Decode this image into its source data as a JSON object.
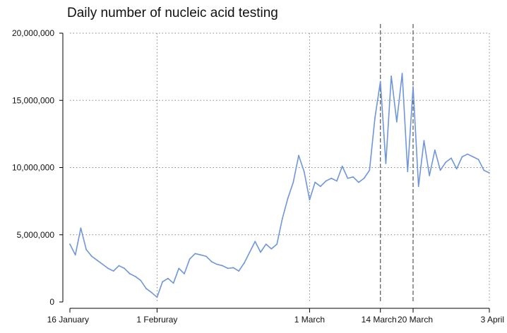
{
  "chart_data": {
    "type": "line",
    "title": "Daily number of nucleic acid testing",
    "xlabel": "",
    "ylabel": "",
    "ylim": [
      0,
      20000000
    ],
    "yticks": [
      0,
      5000000,
      10000000,
      15000000,
      20000000
    ],
    "ytick_labels": [
      "0",
      "5,000,000",
      "10,000,000",
      "15,000,000",
      "20,000,000"
    ],
    "xlim": [
      "2022-01-16",
      "2022-04-03"
    ],
    "xticks": [
      {
        "date": "2022-01-16",
        "label": "16 January"
      },
      {
        "date": "2022-02-01",
        "label": "1 Februray"
      },
      {
        "date": "2022-03-01",
        "label": "1 March"
      },
      {
        "date": "2022-03-14",
        "label": "14 March"
      },
      {
        "date": "2022-03-20",
        "label": "20 March"
      },
      {
        "date": "2022-04-03",
        "label": "3 April"
      }
    ],
    "vlines": [
      "2022-03-14",
      "2022-03-20"
    ],
    "grid": true,
    "series": [
      {
        "color": "#6f96dc",
        "points": [
          [
            "2022-01-16",
            4300000
          ],
          [
            "2022-01-17",
            3500000
          ],
          [
            "2022-01-18",
            5500000
          ],
          [
            "2022-01-19",
            3900000
          ],
          [
            "2022-01-20",
            3400000
          ],
          [
            "2022-01-21",
            3100000
          ],
          [
            "2022-01-22",
            2800000
          ],
          [
            "2022-01-23",
            2500000
          ],
          [
            "2022-01-24",
            2300000
          ],
          [
            "2022-01-25",
            2700000
          ],
          [
            "2022-01-26",
            2500000
          ],
          [
            "2022-01-27",
            2100000
          ],
          [
            "2022-01-28",
            1900000
          ],
          [
            "2022-01-29",
            1600000
          ],
          [
            "2022-01-30",
            1000000
          ],
          [
            "2022-01-31",
            700000
          ],
          [
            "2022-02-01",
            350000
          ],
          [
            "2022-02-02",
            1500000
          ],
          [
            "2022-02-03",
            1750000
          ],
          [
            "2022-02-04",
            1400000
          ],
          [
            "2022-02-05",
            2500000
          ],
          [
            "2022-02-06",
            2100000
          ],
          [
            "2022-02-07",
            3200000
          ],
          [
            "2022-02-08",
            3600000
          ],
          [
            "2022-02-09",
            3500000
          ],
          [
            "2022-02-10",
            3400000
          ],
          [
            "2022-02-11",
            3000000
          ],
          [
            "2022-02-12",
            2800000
          ],
          [
            "2022-02-13",
            2700000
          ],
          [
            "2022-02-14",
            2500000
          ],
          [
            "2022-02-15",
            2550000
          ],
          [
            "2022-02-16",
            2300000
          ],
          [
            "2022-02-17",
            2900000
          ],
          [
            "2022-02-18",
            3700000
          ],
          [
            "2022-02-19",
            4500000
          ],
          [
            "2022-02-20",
            3700000
          ],
          [
            "2022-02-21",
            4300000
          ],
          [
            "2022-02-22",
            3950000
          ],
          [
            "2022-02-23",
            4300000
          ],
          [
            "2022-02-24",
            6200000
          ],
          [
            "2022-02-25",
            7700000
          ],
          [
            "2022-02-26",
            8900000
          ],
          [
            "2022-02-27",
            10900000
          ],
          [
            "2022-02-28",
            9700000
          ],
          [
            "2022-03-01",
            7600000
          ],
          [
            "2022-03-02",
            8900000
          ],
          [
            "2022-03-03",
            8600000
          ],
          [
            "2022-03-04",
            9000000
          ],
          [
            "2022-03-05",
            9200000
          ],
          [
            "2022-03-06",
            9000000
          ],
          [
            "2022-03-07",
            10100000
          ],
          [
            "2022-03-08",
            9200000
          ],
          [
            "2022-03-09",
            9300000
          ],
          [
            "2022-03-10",
            8900000
          ],
          [
            "2022-03-11",
            9200000
          ],
          [
            "2022-03-12",
            9800000
          ],
          [
            "2022-03-13",
            13700000
          ],
          [
            "2022-03-14",
            16400000
          ],
          [
            "2022-03-15",
            10300000
          ],
          [
            "2022-03-16",
            16800000
          ],
          [
            "2022-03-17",
            13400000
          ],
          [
            "2022-03-18",
            17000000
          ],
          [
            "2022-03-19",
            9700000
          ],
          [
            "2022-03-20",
            16000000
          ],
          [
            "2022-03-21",
            8600000
          ],
          [
            "2022-03-22",
            12000000
          ],
          [
            "2022-03-23",
            9400000
          ],
          [
            "2022-03-24",
            11300000
          ],
          [
            "2022-03-25",
            9800000
          ],
          [
            "2022-03-26",
            10400000
          ],
          [
            "2022-03-27",
            10700000
          ],
          [
            "2022-03-28",
            9900000
          ],
          [
            "2022-03-29",
            10800000
          ],
          [
            "2022-03-30",
            11000000
          ],
          [
            "2022-03-31",
            10800000
          ],
          [
            "2022-04-01",
            10600000
          ],
          [
            "2022-04-02",
            9800000
          ],
          [
            "2022-04-03",
            9600000
          ]
        ]
      }
    ]
  }
}
